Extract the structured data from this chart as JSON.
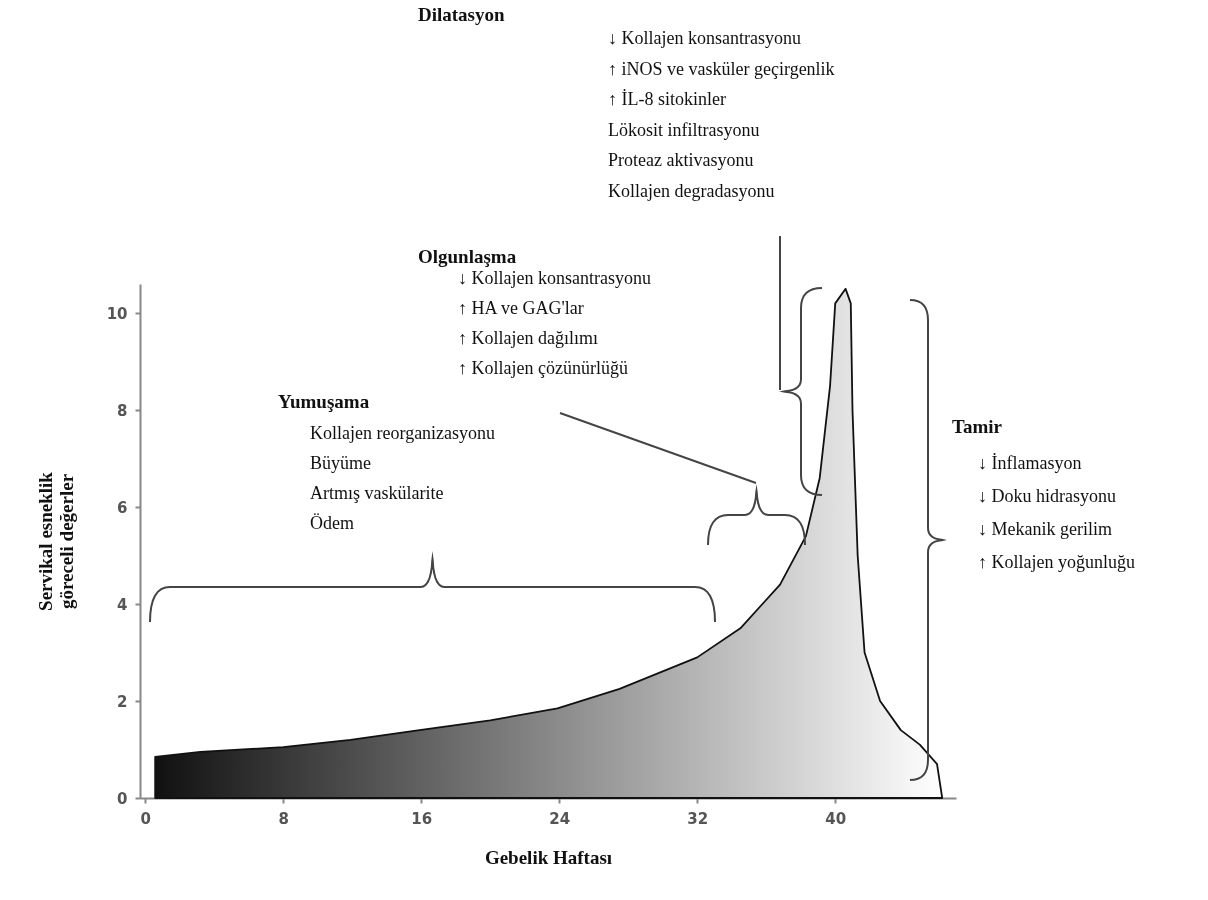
{
  "chart_data": {
    "type": "area",
    "xlabel": "Gebelik Haftası",
    "ylabel": "Servikal esneklik\ngöreceli değerler",
    "x": [
      0.58,
      3.2,
      8,
      11.9,
      15.9,
      20,
      23.9,
      27.5,
      32,
      34.5,
      36.8,
      38.3,
      39.1,
      39.7,
      40,
      40.6,
      40.9,
      41,
      41.3,
      41.7,
      42.6,
      43.8,
      44.9,
      45.9,
      46.2
    ],
    "series": [
      {
        "color": "#111111",
        "values": [
          0.85,
          0.95,
          1.05,
          1.2,
          1.4,
          1.6,
          1.85,
          2.25,
          2.9,
          3.5,
          4.4,
          5.4,
          6.6,
          8.5,
          10.2,
          10.5,
          10.2,
          8,
          5,
          3,
          2,
          1.4,
          1.1,
          0.7,
          0
        ]
      }
    ],
    "xlim": [
      -0.3,
      47
    ],
    "ylim": [
      0,
      10.6
    ],
    "xticks": [
      0,
      8,
      16,
      24,
      32,
      40
    ],
    "yticks": [
      0,
      2,
      4,
      6,
      8,
      10
    ],
    "annotations": [
      "Yumuşama",
      "Kollajen reorganizasyonu\nBüyüme\nArtmış vaskülarite\nÖdem",
      "Olgunlaşma",
      "↓ Kollajen konsantrasyonu\n↑ HA ve GAG'lar\n↑ Kollajen dağılımı\n↑ Kollajen çözünürlüğü",
      "Dilatasyon",
      "↓ Kollajen konsantrasyonu\n↑ iNOS ve vasküler geçirgenlik\n↑ İL-8  sitokinler\n   Lökosit infiltrasyonu\n   Proteaz aktivasyonu\n   Kollajen degradasyonu",
      "Tamir",
      "↓ İnflamasyon\n↓ Doku hidrasyonu\n↓ Mekanik gerilim\n↑ Kollajen yoğunluğu"
    ]
  }
}
